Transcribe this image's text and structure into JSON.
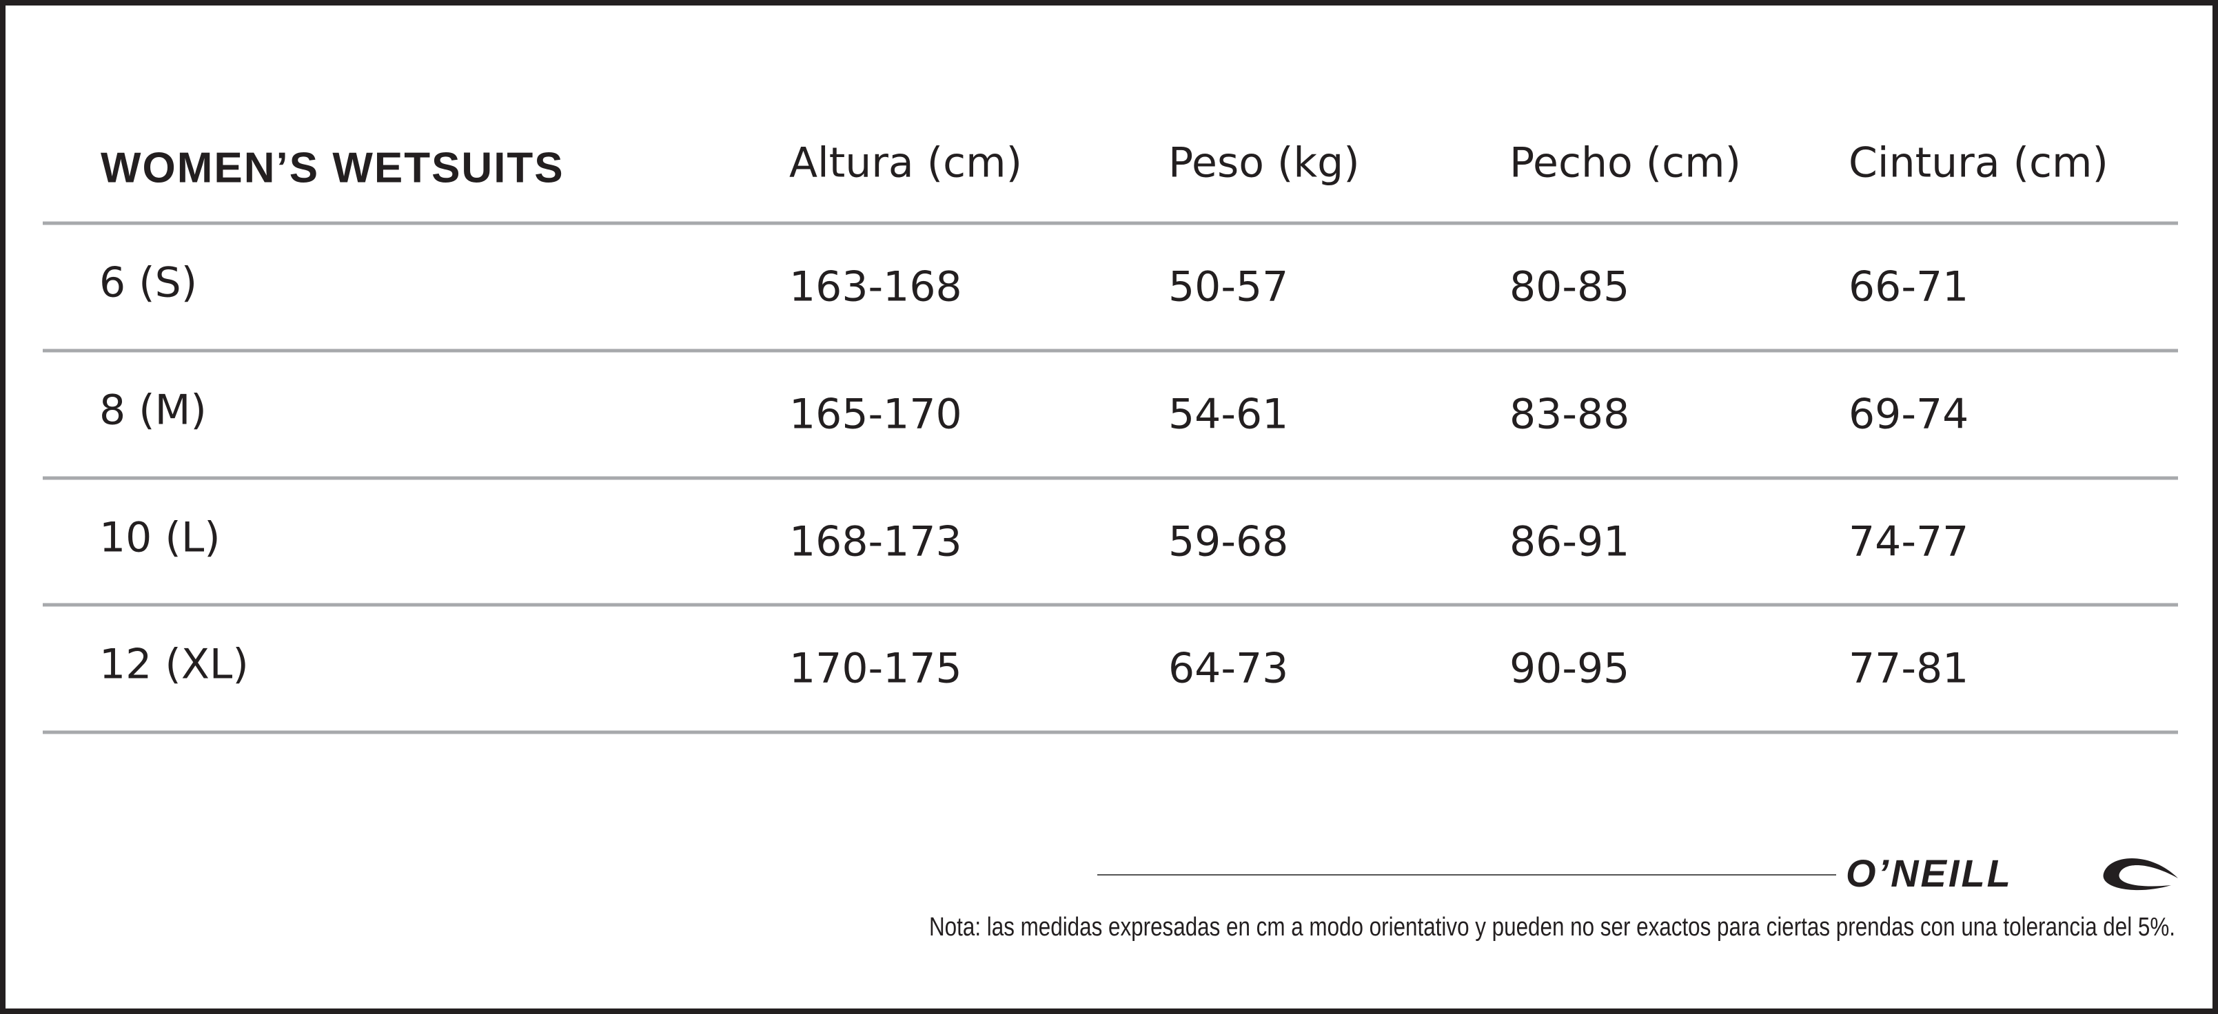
{
  "table": {
    "headers": [
      "WOMEN’S WETSUITS",
      "Altura (cm)",
      "Peso (kg)",
      "Pecho (cm)",
      "Cintura (cm)"
    ],
    "rows": [
      [
        "6 (S)",
        "163-168",
        "50-57",
        "80-85",
        "66-71"
      ],
      [
        "8 (M)",
        "165-170",
        "54-61",
        "83-88",
        "69-74"
      ],
      [
        "10 (L)",
        "168-173",
        "59-68",
        "86-91",
        "74-77"
      ],
      [
        "12 (XL)",
        "170-175",
        "64-73",
        "90-95",
        "77-81"
      ]
    ]
  },
  "brand": "O’NEILL",
  "note": "Nota: las medidas expresadas en cm a modo orientativo y pueden no ser exactos para ciertas prendas con una tolerancia del 5%."
}
